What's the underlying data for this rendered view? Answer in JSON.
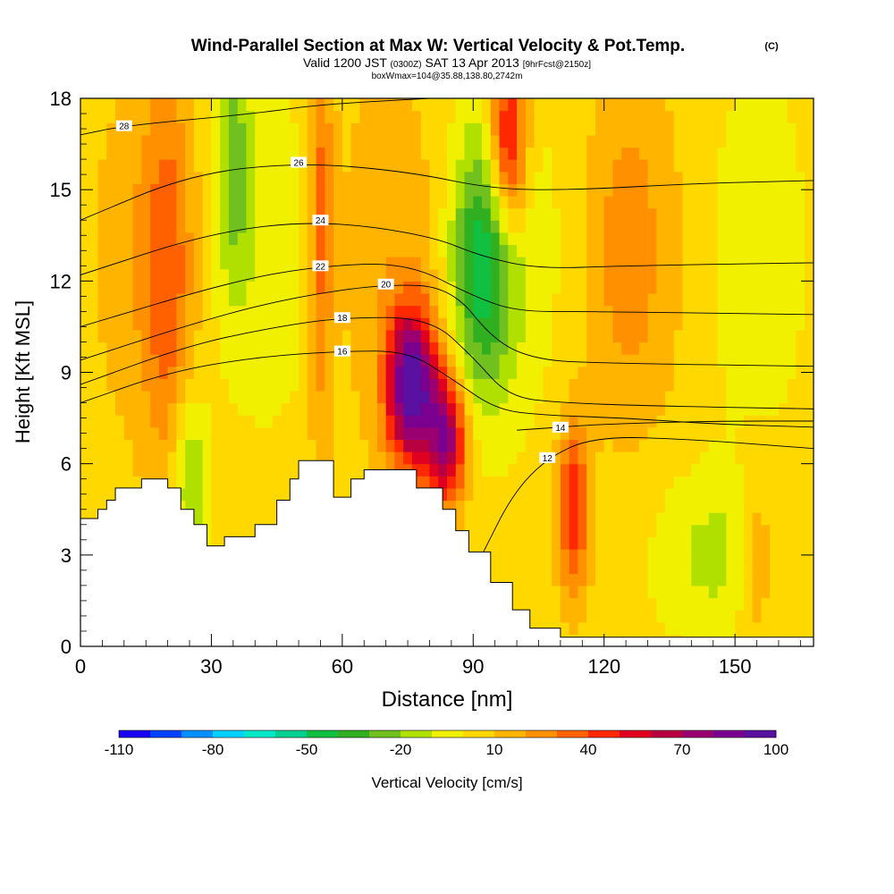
{
  "chart_data": {
    "type": "heatmap",
    "title": "Wind-Parallel Section at Max W: Vertical Velocity & Pot.Temp.",
    "title_mark": "(C)",
    "subtitle": {
      "valid_a": "Valid 1200 JST",
      "valid_tz": "(0300Z)",
      "valid_b": "SAT 13 Apr 2013",
      "fcst": "[9hrFcst@2150z]"
    },
    "subtitle2": "boxWmax=104@35.88,138.80,2742m",
    "xlabel": "Distance [nm]",
    "ylabel": "Height [Kft MSL]",
    "xlim": [
      0,
      168
    ],
    "ylim": [
      0,
      18
    ],
    "xticks": [
      0,
      30,
      60,
      90,
      120,
      150
    ],
    "yticks": [
      0,
      3,
      6,
      9,
      12,
      15,
      18
    ],
    "colorbar": {
      "label": "Vertical Velocity [cm/s]",
      "tick_labels": [
        "-110",
        "-80",
        "-50",
        "-20",
        "10",
        "40",
        "70",
        "100"
      ],
      "colors": [
        "#1a00f0",
        "#0040ff",
        "#0090ff",
        "#00d0ff",
        "#00e8c8",
        "#00d090",
        "#10c040",
        "#30b020",
        "#70c020",
        "#b0e000",
        "#f0f000",
        "#ffd800",
        "#ffb400",
        "#ff9000",
        "#ff6000",
        "#ff2800",
        "#e00020",
        "#b80040",
        "#9a0070",
        "#7a0090",
        "#5a10a0"
      ]
    },
    "wind_speed_field": {
      "description": "vertical velocity (cm/s)",
      "background": 5,
      "features": [
        {
          "x": 76,
          "y": 8.5,
          "sx": 4,
          "sy": 1.8,
          "amp": 95
        },
        {
          "x": 84,
          "y": 6.8,
          "sx": 3,
          "sy": 1.5,
          "amp": 70
        },
        {
          "x": 92,
          "y": 12.5,
          "sx": 5,
          "sy": 3,
          "amp": -45
        },
        {
          "x": 98,
          "y": 16.5,
          "sx": 3,
          "sy": 2,
          "amp": 60
        },
        {
          "x": 113,
          "y": 4.5,
          "sx": 2.5,
          "sy": 2,
          "amp": 45
        },
        {
          "x": 145,
          "y": 3,
          "sx": 10,
          "sy": 2,
          "amp": -18
        },
        {
          "x": 25,
          "y": 5.5,
          "sx": 3,
          "sy": 2,
          "amp": -30
        },
        {
          "x": 20,
          "y": 12,
          "sx": 4,
          "sy": 5,
          "amp": 25
        },
        {
          "x": 55,
          "y": 14,
          "sx": 2,
          "sy": 5,
          "amp": 30
        },
        {
          "x": 35,
          "y": 16,
          "sx": 3,
          "sy": 3,
          "amp": -25
        },
        {
          "x": 125,
          "y": 13,
          "sx": 5,
          "sy": 4,
          "amp": 10
        },
        {
          "x": 155,
          "y": 3,
          "sx": 3,
          "sy": 2,
          "amp": 20
        }
      ]
    },
    "terrain_kft": [
      {
        "x": 0,
        "y": 4.2
      },
      {
        "x": 4,
        "y": 4.5
      },
      {
        "x": 6,
        "y": 4.8
      },
      {
        "x": 8,
        "y": 5.2
      },
      {
        "x": 14,
        "y": 5.5
      },
      {
        "x": 20,
        "y": 5.2
      },
      {
        "x": 23,
        "y": 4.5
      },
      {
        "x": 26,
        "y": 4.0
      },
      {
        "x": 29,
        "y": 3.3
      },
      {
        "x": 33,
        "y": 3.6
      },
      {
        "x": 40,
        "y": 4.0
      },
      {
        "x": 45,
        "y": 4.8
      },
      {
        "x": 48,
        "y": 5.5
      },
      {
        "x": 50,
        "y": 6.1
      },
      {
        "x": 58,
        "y": 4.9
      },
      {
        "x": 62,
        "y": 5.5
      },
      {
        "x": 65,
        "y": 5.8
      },
      {
        "x": 72,
        "y": 5.8
      },
      {
        "x": 77,
        "y": 5.2
      },
      {
        "x": 83,
        "y": 4.5
      },
      {
        "x": 86,
        "y": 3.8
      },
      {
        "x": 89,
        "y": 3.1
      },
      {
        "x": 94,
        "y": 2.1
      },
      {
        "x": 99,
        "y": 1.2
      },
      {
        "x": 103,
        "y": 0.6
      },
      {
        "x": 110,
        "y": 0.3
      },
      {
        "x": 168,
        "y": 0.3
      }
    ],
    "theta_contours": [
      {
        "label": "12",
        "points": [
          [
            92,
            3
          ],
          [
            99,
            5
          ],
          [
            107,
            6.2
          ],
          [
            118,
            6.9
          ],
          [
            140,
            6.8
          ],
          [
            168,
            6.5
          ]
        ]
      },
      {
        "label": "14",
        "points": [
          [
            100,
            7.1
          ],
          [
            110,
            7.2
          ],
          [
            120,
            7.3
          ],
          [
            145,
            7.4
          ],
          [
            168,
            7.4
          ]
        ]
      },
      {
        "label": "16",
        "points": [
          [
            0,
            8.0
          ],
          [
            20,
            9.0
          ],
          [
            40,
            9.5
          ],
          [
            60,
            9.7
          ],
          [
            75,
            9.7
          ],
          [
            85,
            8.8
          ],
          [
            95,
            7.8
          ],
          [
            105,
            7.6
          ],
          [
            125,
            7.5
          ],
          [
            145,
            7.3
          ],
          [
            168,
            7.2
          ]
        ]
      },
      {
        "label": "18",
        "points": [
          [
            0,
            8.6
          ],
          [
            25,
            9.9
          ],
          [
            45,
            10.5
          ],
          [
            60,
            10.8
          ],
          [
            80,
            10.8
          ],
          [
            90,
            9.5
          ],
          [
            98,
            8.2
          ],
          [
            110,
            8.0
          ],
          [
            130,
            7.9
          ],
          [
            168,
            7.8
          ]
        ]
      },
      {
        "label": "20",
        "points": [
          [
            0,
            9.4
          ],
          [
            30,
            10.8
          ],
          [
            50,
            11.5
          ],
          [
            70,
            11.9
          ],
          [
            85,
            11.8
          ],
          [
            95,
            10.0
          ],
          [
            105,
            9.4
          ],
          [
            120,
            9.3
          ],
          [
            168,
            9.2
          ]
        ]
      },
      {
        "label": "22",
        "points": [
          [
            0,
            10.5
          ],
          [
            35,
            12.0
          ],
          [
            55,
            12.5
          ],
          [
            75,
            12.6
          ],
          [
            90,
            11.5
          ],
          [
            100,
            11.0
          ],
          [
            115,
            11.0
          ],
          [
            168,
            10.9
          ]
        ]
      },
      {
        "label": "24",
        "points": [
          [
            0,
            12.2
          ],
          [
            30,
            13.6
          ],
          [
            55,
            14.0
          ],
          [
            80,
            13.5
          ],
          [
            92,
            12.8
          ],
          [
            105,
            12.4
          ],
          [
            125,
            12.5
          ],
          [
            168,
            12.6
          ]
        ]
      },
      {
        "label": "26",
        "points": [
          [
            0,
            14.0
          ],
          [
            25,
            15.5
          ],
          [
            50,
            15.9
          ],
          [
            75,
            15.6
          ],
          [
            95,
            15.0
          ],
          [
            115,
            15.0
          ],
          [
            140,
            15.2
          ],
          [
            168,
            15.3
          ]
        ]
      },
      {
        "label": "28",
        "points": [
          [
            0,
            16.8
          ],
          [
            10,
            17.1
          ],
          [
            40,
            17.5
          ],
          [
            55,
            17.8
          ],
          [
            80,
            18.0
          ]
        ]
      }
    ]
  }
}
